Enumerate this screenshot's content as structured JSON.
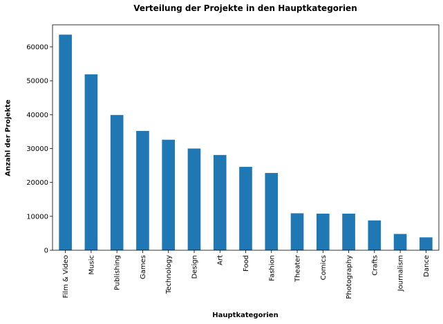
{
  "chart_data": {
    "type": "bar",
    "title": "Verteilung der Projekte in den Hauptkategorien",
    "xlabel": "Hauptkategorien",
    "ylabel": "Anzahl der Projekte",
    "categories": [
      "Film & Video",
      "Music",
      "Publishing",
      "Games",
      "Technology",
      "Design",
      "Art",
      "Food",
      "Fashion",
      "Theater",
      "Comics",
      "Photography",
      "Crafts",
      "Journalism",
      "Dance"
    ],
    "values": [
      63600,
      51900,
      39900,
      35200,
      32600,
      30000,
      28100,
      24600,
      22800,
      10900,
      10800,
      10800,
      8800,
      4800,
      3800
    ],
    "ylim": [
      0,
      66500
    ],
    "yticks": [
      0,
      10000,
      20000,
      30000,
      40000,
      50000,
      60000
    ],
    "ytick_labels": [
      "0",
      "10000",
      "20000",
      "30000",
      "40000",
      "50000",
      "60000"
    ],
    "bar_color": "#1f77b4",
    "grid": false,
    "legend": "none"
  }
}
